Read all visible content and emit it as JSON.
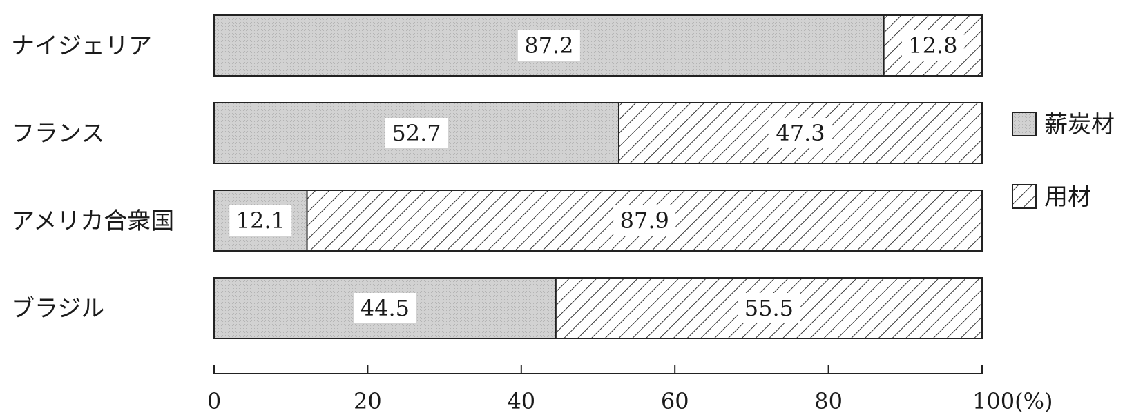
{
  "chart_data": {
    "type": "bar",
    "orientation": "horizontal",
    "stacked": true,
    "categories": [
      "ナイジェリア",
      "フランス",
      "アメリカ合衆国",
      "ブラジル"
    ],
    "series": [
      {
        "name": "薪炭材",
        "values": [
          87.2,
          52.7,
          12.1,
          44.5
        ],
        "value_labels": [
          "87.2",
          "52.7",
          "12.1",
          "44.5"
        ],
        "pattern": "dotted-gray"
      },
      {
        "name": "用材",
        "values": [
          12.8,
          47.3,
          87.9,
          55.5
        ],
        "value_labels": [
          "12.8",
          "47.3",
          "87.9",
          "55.5"
        ],
        "pattern": "diagonal-hatch"
      }
    ],
    "xlim": [
      0,
      100
    ],
    "xticks": [
      0,
      20,
      40,
      60,
      80,
      100
    ],
    "xtick_labels": [
      "0",
      "20",
      "40",
      "60",
      "80",
      "100(%)"
    ],
    "legend_position": "right",
    "grid": false,
    "colors": {
      "firewood_fill": "#cfcfcf",
      "hatch": "#333333",
      "outline": "#222222"
    }
  }
}
